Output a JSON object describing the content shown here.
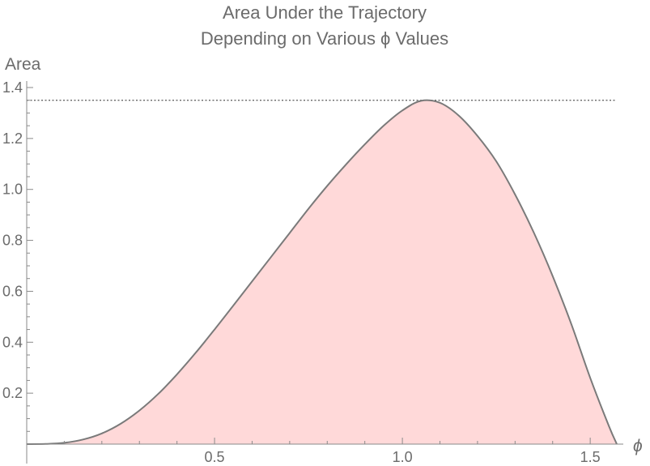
{
  "chart_data": {
    "type": "area",
    "title": [
      "Area Under the Trajectory",
      "Depending on Various ϕ Values"
    ],
    "xlabel": "ϕ",
    "ylabel": "Area",
    "xlim": [
      0,
      1.5708
    ],
    "ylim": [
      0,
      1.4
    ],
    "x_ticks": [
      0.5,
      1.0,
      1.5
    ],
    "x_tick_labels": [
      "0.5",
      "1.0",
      "1.5"
    ],
    "y_ticks": [
      0.2,
      0.4,
      0.6,
      0.8,
      1.0,
      1.2,
      1.4
    ],
    "y_tick_labels": [
      "0.2",
      "0.4",
      "0.6",
      "0.8",
      "1.0",
      "1.2",
      "1.4"
    ],
    "reference_line_y": 1.35,
    "series": [
      {
        "x": [
          0,
          0.05,
          0.1,
          0.15,
          0.2,
          0.25,
          0.3,
          0.35,
          0.4,
          0.45,
          0.5,
          0.55,
          0.6,
          0.65,
          0.7,
          0.75,
          0.8,
          0.85,
          0.9,
          0.95,
          1.0,
          1.05,
          1.1,
          1.15,
          1.2,
          1.25,
          1.3,
          1.35,
          1.4,
          1.45,
          1.5,
          1.55,
          1.5708
        ],
        "y": [
          0,
          0.0007,
          0.005,
          0.018,
          0.042,
          0.08,
          0.132,
          0.197,
          0.274,
          0.359,
          0.45,
          0.544,
          0.639,
          0.734,
          0.829,
          0.924,
          1.014,
          1.098,
          1.177,
          1.25,
          1.31,
          1.348,
          1.34,
          1.29,
          1.21,
          1.11,
          0.98,
          0.83,
          0.66,
          0.47,
          0.26,
          0.07,
          0
        ]
      }
    ],
    "grid": false,
    "fill": "#ffd9d9",
    "line_color": "#7a7a7a"
  }
}
